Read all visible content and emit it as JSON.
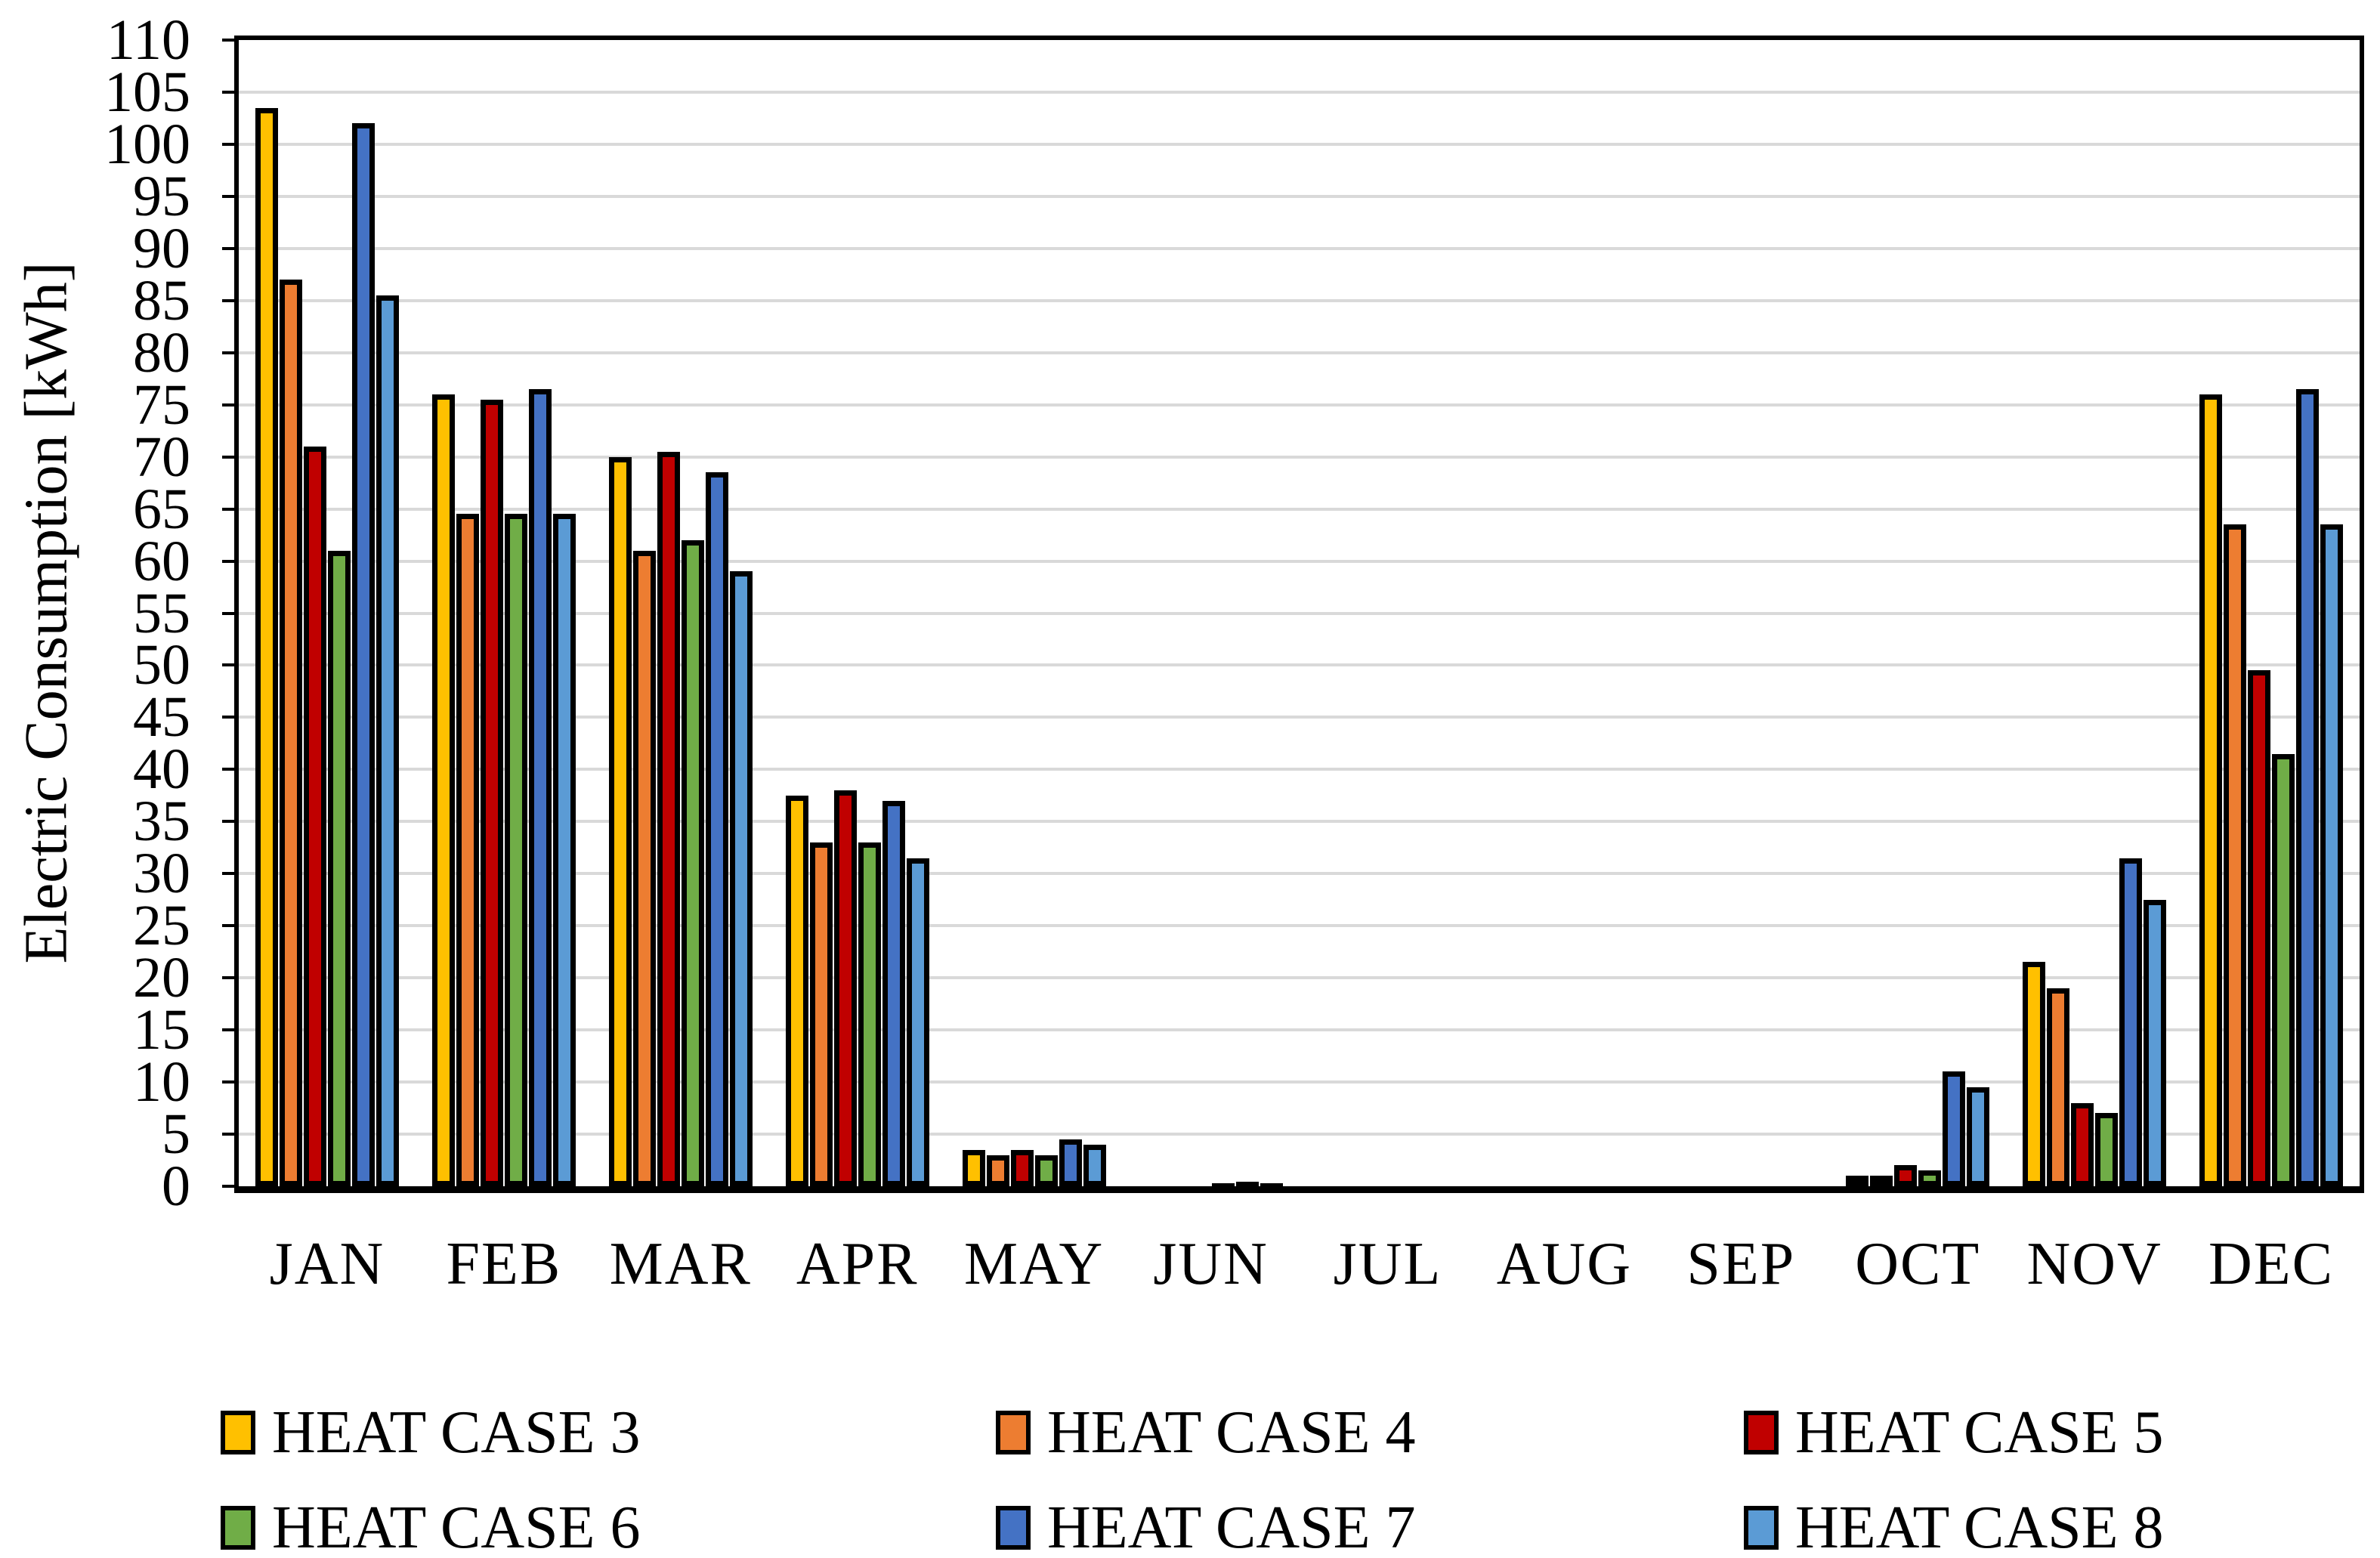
{
  "chart_data": {
    "type": "bar",
    "title": "",
    "ylabel": "Electric Consumption [kWh]",
    "xlabel": "",
    "ylim": [
      0,
      110
    ],
    "ytick_step": 5,
    "yticks": [
      0,
      5,
      10,
      15,
      20,
      25,
      30,
      35,
      40,
      45,
      50,
      55,
      60,
      65,
      70,
      75,
      80,
      85,
      90,
      95,
      100,
      105,
      110
    ],
    "grid": "horizontal-major",
    "legend_position": "bottom",
    "categories": [
      "JAN",
      "FEB",
      "MAR",
      "APR",
      "MAY",
      "JUN",
      "JUL",
      "AUG",
      "SEP",
      "OCT",
      "NOV",
      "DEC"
    ],
    "series": [
      {
        "name": "HEAT CASE 3",
        "color": "#FFC000",
        "values": [
          103.5,
          76,
          70,
          37.5,
          3.5,
          0,
          0,
          0,
          0,
          1,
          21.5,
          76
        ]
      },
      {
        "name": "HEAT CASE 4",
        "color": "#ED7D31",
        "values": [
          87,
          64.5,
          61,
          33,
          3,
          0,
          0,
          0,
          0,
          1,
          19,
          63.5
        ]
      },
      {
        "name": "HEAT CASE 5",
        "color": "#C00000",
        "values": [
          71,
          75.5,
          70.5,
          38,
          3.5,
          0,
          0,
          0,
          0,
          2,
          8,
          49.5
        ]
      },
      {
        "name": "HEAT CASE 6",
        "color": "#70AD47",
        "values": [
          61,
          64.5,
          62,
          33,
          3,
          0.2,
          0,
          0,
          0,
          1.5,
          7,
          41.5
        ]
      },
      {
        "name": "HEAT CASE 7",
        "color": "#4472C4",
        "values": [
          102,
          76.5,
          68.5,
          37,
          4.5,
          0.4,
          0,
          0,
          0,
          11,
          31.5,
          76.5
        ]
      },
      {
        "name": "HEAT CASE 8",
        "color": "#5B9BD5",
        "values": [
          85.5,
          64.5,
          59,
          31.5,
          4,
          0.3,
          0,
          0,
          0,
          9.5,
          27.5,
          63.5
        ]
      }
    ],
    "bar_border_color": "#000000",
    "gridline_color": "#D9D9D9",
    "axis_color": "#000000",
    "plot_background": "#FFFFFF"
  }
}
